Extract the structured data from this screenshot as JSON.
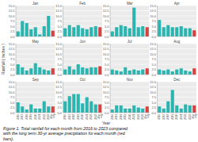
{
  "chart_data": [
    {
      "type": "bar",
      "title": "Jan",
      "ylabel": "Rainfall ( Inches )",
      "xlabel": "Year",
      "annotations": [
        "Figure 1. Total rainfall for each month from 2016 to 2023 compared\nwith the long term 30-yr average precipitation for each month (red\nbars)."
      ],
      "categories": [
        null,
        null,
        null,
        null,
        null,
        null,
        null,
        null,
        null
      ],
      "tick_labels": "y",
      "values": [
        2.5,
        7.5,
        6.5,
        3.5,
        4.5,
        1.0,
        5.0,
        10.0,
        2.8
      ],
      "colors": [
        "#2ab5b0",
        "#2ab5b0",
        "#2ab5b0",
        "#2ab5b0",
        "#2ab5b0",
        "#2ab5b0",
        "#2ab5b0",
        "#2ab5b0",
        "#d94040"
      ],
      "ylim": [
        0,
        15
      ],
      "yticks": [
        {
          "value": 0.0,
          "label": "0.0"
        },
        2.5,
        {
          "value": 5.0,
          "label": "5.0"
        },
        7.5,
        {
          "value": 10.0,
          "label": "10.0"
        },
        12.5,
        {
          "value": 15.0,
          "label": "15.0"
        }
      ],
      "grid": true
    },
    {
      "type": "bar",
      "title": "Feb",
      "categories": [
        null,
        null,
        null,
        null,
        null,
        null,
        null,
        null,
        null
      ],
      "tick_labels": "y",
      "values": [
        4.0,
        5.5,
        4.5,
        5.5,
        4.0,
        3.5,
        4.5,
        5.0,
        4.5
      ],
      "colors": [
        "#2ab5b0",
        "#2ab5b0",
        "#2ab5b0",
        "#2ab5b0",
        "#2ab5b0",
        "#2ab5b0",
        "#2ab5b0",
        "#2ab5b0",
        "#d94040"
      ],
      "ylim": [
        0,
        15
      ],
      "yticks": [
        {
          "value": 0.0,
          "label": "0.0"
        },
        2.5,
        {
          "value": 5.0,
          "label": "5.0"
        },
        7.5,
        {
          "value": 10.0,
          "label": "10.0"
        },
        12.5,
        {
          "value": 15.0,
          "label": "15.0"
        }
      ],
      "grid": true
    },
    {
      "type": "bar",
      "title": "Mar",
      "categories": [
        null,
        null,
        null,
        null,
        null,
        null,
        null,
        null,
        null
      ],
      "tick_labels": "y",
      "values": [
        2.5,
        4.5,
        5.5,
        5.0,
        4.0,
        14.0,
        4.5,
        5.0,
        4.5
      ],
      "colors": [
        "#2ab5b0",
        "#2ab5b0",
        "#2ab5b0",
        "#2ab5b0",
        "#2ab5b0",
        "#2ab5b0",
        "#2ab5b0",
        "#2ab5b0",
        "#d94040"
      ],
      "ylim": [
        0,
        15
      ],
      "yticks": [
        {
          "value": 0.0,
          "label": "0.0"
        },
        2.5,
        {
          "value": 5.0,
          "label": "5.0"
        },
        7.5,
        {
          "value": 10.0,
          "label": "10.0"
        },
        12.5,
        {
          "value": 15.0,
          "label": "15.0"
        }
      ],
      "grid": true
    },
    {
      "type": "bar",
      "title": "Apr",
      "categories": [
        null,
        null,
        null,
        null,
        null,
        null,
        null,
        null,
        null
      ],
      "tick_labels": "y",
      "values": [
        8.0,
        4.5,
        5.5,
        4.5,
        4.5,
        5.0,
        4.0,
        4.0,
        3.0
      ],
      "colors": [
        "#2ab5b0",
        "#2ab5b0",
        "#2ab5b0",
        "#2ab5b0",
        "#2ab5b0",
        "#2ab5b0",
        "#2ab5b0",
        "#2ab5b0",
        "#d94040"
      ],
      "ylim": [
        0,
        15
      ],
      "yticks": [
        {
          "value": 0.0,
          "label": "0.0"
        },
        2.5,
        {
          "value": 5.0,
          "label": "5.0"
        },
        7.5,
        {
          "value": 10.0,
          "label": "10.0"
        },
        12.5,
        {
          "value": 15.0,
          "label": "15.0"
        }
      ],
      "grid": true
    },
    {
      "type": "bar",
      "title": "May",
      "categories": [
        null,
        null,
        null,
        null,
        null,
        null,
        null,
        null,
        null
      ],
      "tick_labels": "y",
      "values": [
        5.0,
        3.5,
        2.0,
        3.0,
        5.5,
        3.5,
        2.5,
        2.0,
        3.0
      ],
      "colors": [
        "#2ab5b0",
        "#2ab5b0",
        "#2ab5b0",
        "#2ab5b0",
        "#2ab5b0",
        "#2ab5b0",
        "#2ab5b0",
        "#2ab5b0",
        "#d94040"
      ],
      "ylim": [
        0,
        15
      ],
      "yticks": [
        {
          "value": 0.0,
          "label": "0.0"
        },
        2.5,
        {
          "value": 5.0,
          "label": "5.0"
        },
        7.5,
        {
          "value": 10.0,
          "label": "10.0"
        },
        12.5,
        {
          "value": 15.0,
          "label": "15.0"
        }
      ],
      "grid": true
    },
    {
      "type": "bar",
      "title": "Jun",
      "categories": [
        null,
        null,
        null,
        null,
        null,
        null,
        null,
        null,
        null
      ],
      "tick_labels": "y",
      "values": [
        2.5,
        4.0,
        2.5,
        5.0,
        3.5,
        3.0,
        3.5,
        3.5,
        4.0
      ],
      "colors": [
        "#2ab5b0",
        "#2ab5b0",
        "#2ab5b0",
        "#2ab5b0",
        "#2ab5b0",
        "#2ab5b0",
        "#2ab5b0",
        "#2ab5b0",
        "#d94040"
      ],
      "ylim": [
        0,
        15
      ],
      "yticks": [
        {
          "value": 0.0,
          "label": "0.0"
        },
        2.5,
        {
          "value": 5.0,
          "label": "5.0"
        },
        7.5,
        {
          "value": 10.0,
          "label": "10.0"
        },
        12.5,
        {
          "value": 15.0,
          "label": "15.0"
        }
      ],
      "grid": true
    },
    {
      "type": "bar",
      "title": "Jul",
      "categories": [
        null,
        null,
        null,
        null,
        null,
        null,
        null,
        null,
        null
      ],
      "tick_labels": "y",
      "values": [
        2.5,
        2.0,
        1.5,
        3.5,
        2.0,
        2.5,
        2.0,
        2.5,
        3.0
      ],
      "colors": [
        "#2ab5b0",
        "#2ab5b0",
        "#2ab5b0",
        "#2ab5b0",
        "#2ab5b0",
        "#2ab5b0",
        "#2ab5b0",
        "#2ab5b0",
        "#d94040"
      ],
      "ylim": [
        0,
        15
      ],
      "yticks": [
        {
          "value": 0.0,
          "label": "0.0"
        },
        2.5,
        {
          "value": 5.0,
          "label": "5.0"
        },
        7.5,
        {
          "value": 10.0,
          "label": "10.0"
        },
        12.5,
        {
          "value": 15.0,
          "label": "15.0"
        }
      ],
      "grid": true
    },
    {
      "type": "bar",
      "title": "Aug",
      "categories": [
        null,
        null,
        null,
        null,
        null,
        null,
        null,
        null,
        null
      ],
      "tick_labels": "y",
      "values": [
        2.5,
        2.0,
        2.5,
        1.5,
        2.5,
        3.0,
        2.0,
        1.5,
        3.0
      ],
      "colors": [
        "#2ab5b0",
        "#2ab5b0",
        "#2ab5b0",
        "#2ab5b0",
        "#2ab5b0",
        "#2ab5b0",
        "#2ab5b0",
        "#2ab5b0",
        "#d94040"
      ],
      "ylim": [
        0,
        15
      ],
      "yticks": [
        {
          "value": 0.0,
          "label": "0.0"
        },
        2.5,
        {
          "value": 5.0,
          "label": "5.0"
        },
        7.5,
        {
          "value": 10.0,
          "label": "10.0"
        },
        12.5,
        {
          "value": 15.0,
          "label": "15.0"
        }
      ],
      "grid": true
    },
    {
      "type": "bar",
      "title": "Sep",
      "categories": [
        "2016",
        "2017",
        "2018",
        "2019",
        "2020",
        "2021",
        "2022",
        "2023",
        "30yr\navg"
      ],
      "values": [
        5.0,
        3.0,
        1.5,
        4.0,
        2.0,
        2.0,
        5.5,
        3.0,
        3.0
      ],
      "colors": [
        "#2ab5b0",
        "#2ab5b0",
        "#2ab5b0",
        "#2ab5b0",
        "#2ab5b0",
        "#2ab5b0",
        "#2ab5b0",
        "#2ab5b0",
        "#d94040"
      ],
      "ylim": [
        0,
        15
      ],
      "yticks": [
        {
          "value": 0.0,
          "label": "0.0"
        },
        2.5,
        {
          "value": 5.0,
          "label": "5.0"
        },
        7.5,
        {
          "value": 10.0,
          "label": "10.0"
        },
        12.5,
        {
          "value": 15.0,
          "label": "15.0"
        }
      ],
      "grid": true
    },
    {
      "type": "bar",
      "title": "Oct",
      "categories": [
        "2016",
        "2017",
        "2018",
        "2019",
        "2020",
        "2021",
        "2022",
        "2023",
        "30yr\navg"
      ],
      "values": [
        5.5,
        8.0,
        9.0,
        9.0,
        4.5,
        7.5,
        5.5,
        4.0,
        4.0
      ],
      "colors": [
        "#2ab5b0",
        "#2ab5b0",
        "#2ab5b0",
        "#2ab5b0",
        "#2ab5b0",
        "#2ab5b0",
        "#2ab5b0",
        "#2ab5b0",
        "#d94040"
      ],
      "ylim": [
        0,
        15
      ],
      "yticks": [
        {
          "value": 0.0,
          "label": "0.0"
        },
        2.5,
        {
          "value": 5.0,
          "label": "5.0"
        },
        7.5,
        {
          "value": 10.0,
          "label": "10.0"
        },
        12.5,
        {
          "value": 15.0,
          "label": "15.0"
        }
      ],
      "grid": true
    },
    {
      "type": "bar",
      "title": "Nov",
      "categories": [
        "2016",
        "2017",
        "2018",
        "2019",
        "2020",
        "2021",
        "2022",
        "2023",
        "30yr\navg"
      ],
      "values": [
        1.5,
        3.5,
        3.5,
        2.0,
        2.0,
        3.5,
        2.5,
        2.0,
        3.0
      ],
      "colors": [
        "#2ab5b0",
        "#2ab5b0",
        "#2ab5b0",
        "#2ab5b0",
        "#2ab5b0",
        "#2ab5b0",
        "#2ab5b0",
        "#2ab5b0",
        "#d94040"
      ],
      "ylim": [
        0,
        15
      ],
      "yticks": [
        {
          "value": 0.0,
          "label": "0.0"
        },
        2.5,
        {
          "value": 5.0,
          "label": "5.0"
        },
        7.5,
        {
          "value": 10.0,
          "label": "10.0"
        },
        12.5,
        {
          "value": 15.0,
          "label": "15.0"
        }
      ],
      "grid": true
    },
    {
      "type": "bar",
      "title": "Dec",
      "categories": [
        "2016",
        "2017",
        "2018",
        "2019",
        "2020",
        "2021",
        "2022",
        "2023",
        "30yr\navg"
      ],
      "values": [
        3.0,
        2.0,
        5.5,
        11.0,
        3.5,
        2.0,
        4.0,
        3.5,
        3.5
      ],
      "colors": [
        "#2ab5b0",
        "#2ab5b0",
        "#2ab5b0",
        "#2ab5b0",
        "#2ab5b0",
        "#2ab5b0",
        "#2ab5b0",
        "#2ab5b0",
        "#d94040"
      ],
      "ylim": [
        0,
        15
      ],
      "yticks": [
        {
          "value": 0.0,
          "label": "0.0"
        },
        2.5,
        {
          "value": 5.0,
          "label": "5.0"
        },
        7.5,
        {
          "value": 10.0,
          "label": "10.0"
        },
        12.5,
        {
          "value": 15.0,
          "label": "15.0"
        }
      ],
      "grid": true
    }
  ]
}
